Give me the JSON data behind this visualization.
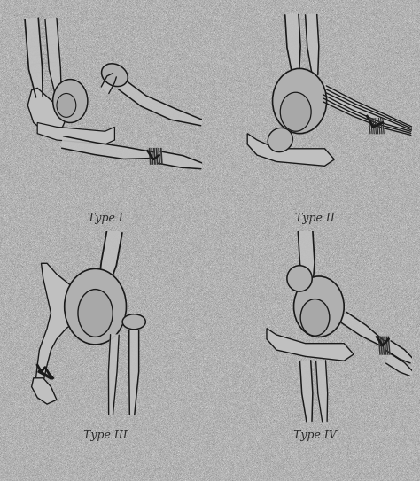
{
  "background_color": "#c8c8c8",
  "fig_width": 4.74,
  "fig_height": 5.43,
  "dpi": 100,
  "labels": [
    "Type I",
    "Type II",
    "Type III",
    "Type IV"
  ],
  "label_fontsize": 9,
  "label_color": "#2a2a2a",
  "sketch_color": "#1a1a1a",
  "bone_fill": "#c0c0c0",
  "bone_fill2": "#b0b0b0",
  "bone_fill3": "#a8a8a8",
  "sketch_lw": 1.0
}
